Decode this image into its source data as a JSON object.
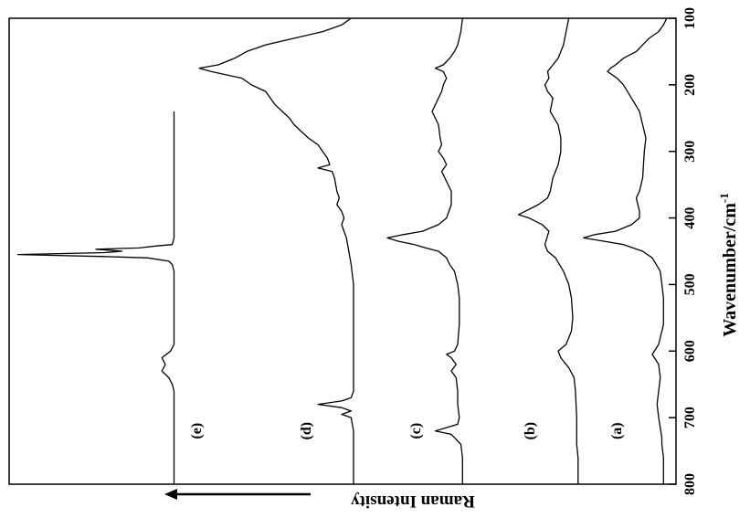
{
  "chart_data": {
    "type": "line",
    "xlabel": "Wavenumber/cm",
    "xlabel_sup": "-1",
    "ylabel": "Raman Intensity",
    "x_ticks": [
      800,
      700,
      600,
      500,
      400,
      300,
      200,
      100
    ],
    "xlim": [
      800,
      100
    ],
    "orientation": "rotated 90° clockwise (wavenumber axis vertical on right, intensity increases to the left)",
    "series": [
      {
        "name": "(a)",
        "x": [
          800,
          760,
          740,
          730,
          700,
          680,
          660,
          640,
          620,
          605,
          590,
          560,
          520,
          480,
          460,
          450,
          440,
          435,
          430,
          425,
          420,
          410,
          400,
          390,
          370,
          360,
          340,
          300,
          280,
          260,
          240,
          220,
          200,
          190,
          180,
          175,
          170,
          160,
          150,
          140,
          130,
          120,
          110,
          100
        ],
        "y": [
          0.05,
          0.05,
          0.06,
          0.06,
          0.08,
          0.09,
          0.08,
          0.07,
          0.08,
          0.12,
          0.08,
          0.05,
          0.05,
          0.07,
          0.12,
          0.18,
          0.3,
          0.42,
          0.55,
          0.48,
          0.35,
          0.25,
          0.2,
          0.2,
          0.22,
          0.2,
          0.18,
          0.17,
          0.16,
          0.18,
          0.2,
          0.25,
          0.3,
          0.34,
          0.4,
          0.38,
          0.35,
          0.3,
          0.22,
          0.18,
          0.14,
          0.08,
          0.05,
          0.03
        ]
      },
      {
        "name": "(b)",
        "x": [
          800,
          760,
          740,
          700,
          660,
          640,
          625,
          610,
          600,
          590,
          570,
          550,
          520,
          500,
          480,
          460,
          450,
          440,
          420,
          410,
          400,
          395,
          390,
          380,
          370,
          360,
          340,
          320,
          300,
          280,
          260,
          240,
          220,
          210,
          200,
          190,
          180,
          170,
          160,
          140,
          120,
          100
        ],
        "y": [
          0.05,
          0.05,
          0.06,
          0.06,
          0.07,
          0.08,
          0.12,
          0.18,
          0.2,
          0.14,
          0.1,
          0.09,
          0.1,
          0.12,
          0.16,
          0.22,
          0.28,
          0.3,
          0.27,
          0.32,
          0.42,
          0.5,
          0.45,
          0.35,
          0.28,
          0.26,
          0.24,
          0.2,
          0.18,
          0.18,
          0.2,
          0.26,
          0.24,
          0.28,
          0.3,
          0.27,
          0.28,
          0.24,
          0.2,
          0.16,
          0.14,
          0.12
        ]
      },
      {
        "name": "(c)",
        "x": [
          800,
          760,
          740,
          725,
          720,
          710,
          700,
          680,
          660,
          640,
          630,
          620,
          610,
          605,
          600,
          590,
          560,
          520,
          500,
          480,
          470,
          460,
          450,
          445,
          440,
          435,
          430,
          425,
          420,
          410,
          400,
          380,
          360,
          340,
          330,
          320,
          310,
          300,
          290,
          280,
          260,
          240,
          230,
          220,
          210,
          200,
          190,
          180,
          175,
          170,
          160,
          150,
          140,
          120,
          100
        ],
        "y": [
          0.05,
          0.05,
          0.06,
          0.12,
          0.22,
          0.08,
          0.07,
          0.08,
          0.08,
          0.09,
          0.12,
          0.09,
          0.12,
          0.15,
          0.1,
          0.08,
          0.07,
          0.07,
          0.08,
          0.1,
          0.13,
          0.15,
          0.2,
          0.28,
          0.35,
          0.45,
          0.52,
          0.42,
          0.3,
          0.2,
          0.15,
          0.12,
          0.12,
          0.16,
          0.18,
          0.15,
          0.17,
          0.2,
          0.18,
          0.19,
          0.2,
          0.24,
          0.22,
          0.2,
          0.18,
          0.17,
          0.15,
          0.17,
          0.22,
          0.17,
          0.13,
          0.1,
          0.08,
          0.06,
          0.05
        ]
      },
      {
        "name": "(d)",
        "x": [
          800,
          760,
          720,
          700,
          695,
          690,
          685,
          680,
          675,
          670,
          660,
          640,
          600,
          550,
          500,
          470,
          450,
          430,
          420,
          410,
          400,
          390,
          380,
          370,
          360,
          340,
          330,
          325,
          320,
          310,
          300,
          290,
          280,
          260,
          250,
          240,
          230,
          220,
          210,
          200,
          190,
          180,
          175,
          170,
          160,
          150,
          140,
          130,
          120,
          110,
          100
        ],
        "y": [
          0.05,
          0.05,
          0.05,
          0.06,
          0.1,
          0.06,
          0.1,
          0.2,
          0.1,
          0.06,
          0.05,
          0.05,
          0.05,
          0.05,
          0.05,
          0.06,
          0.07,
          0.08,
          0.09,
          0.1,
          0.09,
          0.1,
          0.12,
          0.11,
          0.12,
          0.13,
          0.14,
          0.2,
          0.15,
          0.16,
          0.18,
          0.2,
          0.24,
          0.3,
          0.32,
          0.35,
          0.38,
          0.4,
          0.42,
          0.48,
          0.52,
          0.65,
          0.7,
          0.62,
          0.55,
          0.5,
          0.42,
          0.3,
          0.18,
          0.1,
          0.06
        ]
      },
      {
        "name": "(e)",
        "x": [
          800,
          760,
          720,
          700,
          680,
          660,
          650,
          640,
          630,
          620,
          610,
          600,
          590,
          560,
          520,
          500,
          480,
          470,
          465,
          460,
          458,
          455,
          452,
          450,
          447,
          445,
          442,
          440,
          430,
          420,
          400,
          380,
          360,
          340,
          320,
          300,
          280,
          260,
          240
        ],
        "y": [
          0.05,
          0.05,
          0.05,
          0.05,
          0.05,
          0.05,
          0.06,
          0.08,
          0.12,
          0.1,
          0.12,
          0.07,
          0.05,
          0.05,
          0.05,
          0.05,
          0.05,
          0.06,
          0.08,
          0.2,
          0.45,
          0.95,
          0.45,
          0.35,
          0.5,
          0.25,
          0.15,
          0.06,
          0.05,
          0.05,
          0.05,
          0.05,
          0.05,
          0.05,
          0.05,
          0.05,
          0.05,
          0.05,
          0.05
        ]
      }
    ]
  }
}
